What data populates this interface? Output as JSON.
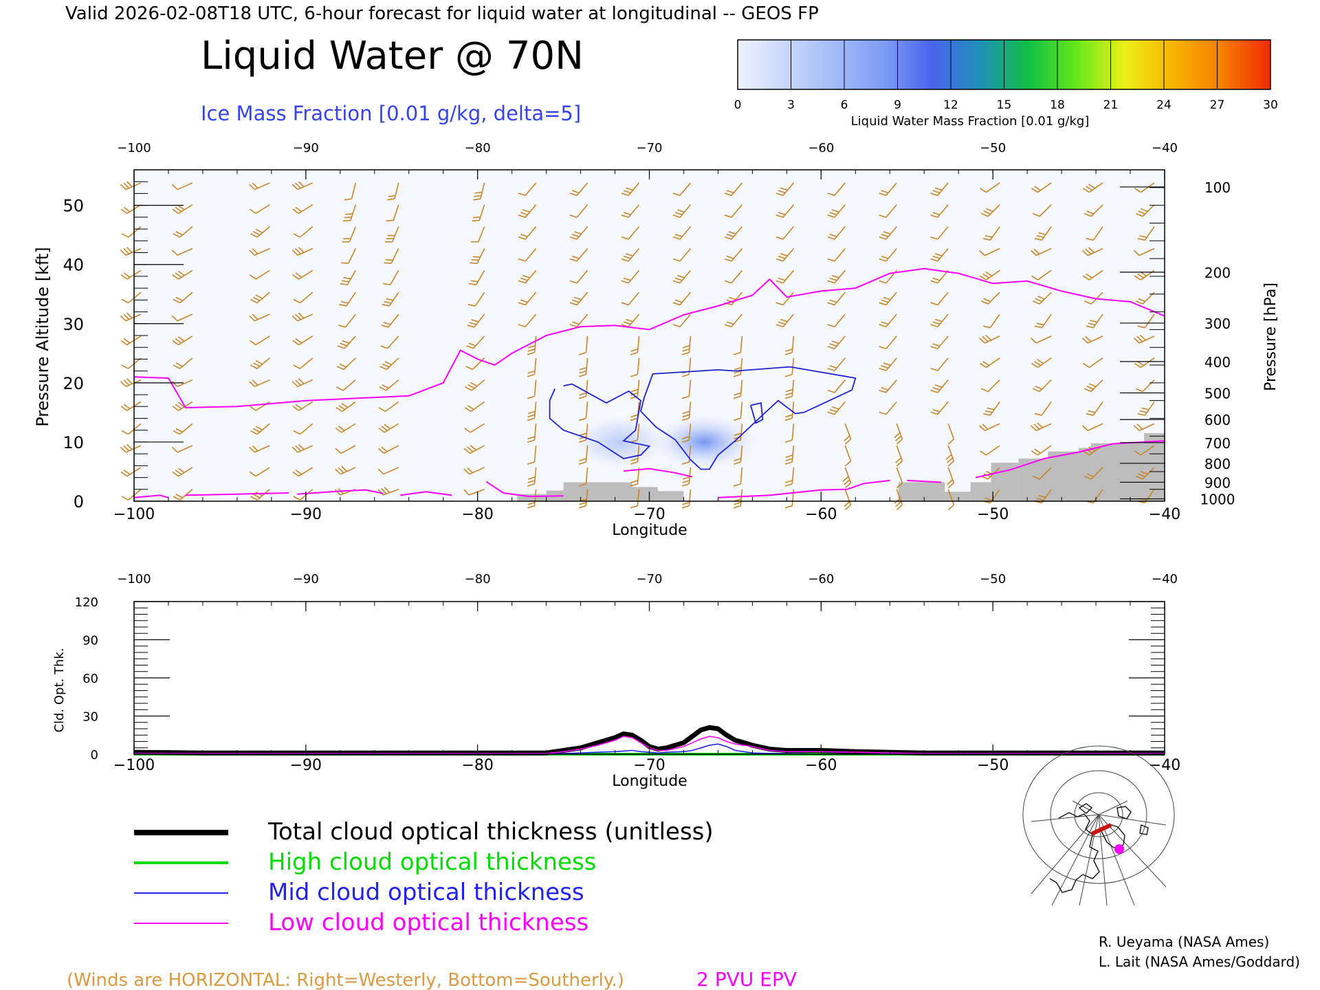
{
  "header": {
    "valid_line": "Valid 2026-02-08T18 UTC, 6-hour forecast for liquid water at longitudinal -- GEOS FP",
    "title": "Liquid Water @ 70N",
    "subtitle": "Ice Mass Fraction [0.01 g/kg, delta=5]"
  },
  "colorbar": {
    "ticks": [
      "0",
      "3",
      "6",
      "9",
      "12",
      "15",
      "18",
      "21",
      "24",
      "27",
      "30"
    ],
    "label": "Liquid Water Mass Fraction [0.01 g/kg]",
    "colors": [
      "#eef2fd",
      "#c9d8fb",
      "#a3bcf8",
      "#7f9df4",
      "#4a64ee",
      "#1f8fb8",
      "#0fbf45",
      "#66e81a",
      "#ecf01a",
      "#f7b300",
      "#f77d00",
      "#f02a00"
    ]
  },
  "colors": {
    "wind_barb": "#c8862a",
    "epv_line": "#ff00ff",
    "ice_contour": "#1f22d6",
    "terrain": "#bdbdbd",
    "total": "#000000",
    "high": "#00dd00",
    "mid": "#2222ee",
    "low": "#ff00ff"
  },
  "chart_data": [
    {
      "type": "contour",
      "xlabel": "Longitude",
      "ylabel": "Pressure Altitude [kft]",
      "ylabel_right": "Pressure [hPa]",
      "xlim": [
        -100,
        -40
      ],
      "ylim": [
        0,
        56
      ],
      "x_ticks": [
        "−100",
        "−90",
        "−80",
        "−70",
        "−60",
        "−50",
        "−40"
      ],
      "x_ticks_values": [
        -100,
        -90,
        -80,
        -70,
        -60,
        -50,
        -40
      ],
      "y_ticks": [
        "0",
        "10",
        "20",
        "30",
        "40",
        "50"
      ],
      "y_ticks_values": [
        0,
        10,
        20,
        30,
        40,
        50
      ],
      "pressure_ticks": [
        "100",
        "200",
        "300",
        "400",
        "500",
        "600",
        "700",
        "800",
        "900",
        "1000"
      ],
      "pressure_ticks_kft": [
        53.1,
        38.7,
        30.1,
        23.6,
        18.3,
        13.8,
        9.9,
        6.4,
        3.2,
        0.4
      ],
      "epv_2pvu": {
        "name": "2 PVU EPV",
        "x": [
          -100,
          -98,
          -97,
          -94,
          -90,
          -87,
          -84,
          -82,
          -81,
          -80,
          -79,
          -78,
          -76,
          -74,
          -72,
          -70,
          -68,
          -66,
          -64,
          -63,
          -62,
          -60,
          -58,
          -56,
          -54,
          -52,
          -50,
          -48,
          -46,
          -44,
          -42,
          -40
        ],
        "y": [
          21,
          20.8,
          15.8,
          16,
          17,
          17.4,
          17.8,
          20,
          25.5,
          24,
          23,
          25,
          28,
          29.5,
          29.7,
          29,
          31.5,
          33,
          34.8,
          37.5,
          34.5,
          35.5,
          36,
          38.5,
          39.3,
          38.5,
          36.8,
          37.2,
          35.5,
          34.2,
          33.7,
          31.3
        ]
      },
      "epv_surface_lines": [
        {
          "x": [
            -100,
            -98.5,
            -98
          ],
          "y": [
            0.6,
            1.0,
            0.6
          ]
        },
        {
          "x": [
            -97,
            -94,
            -91
          ],
          "y": [
            1.0,
            1.2,
            1.4
          ]
        },
        {
          "x": [
            -90.5,
            -88,
            -86.5,
            -85.5
          ],
          "y": [
            1.2,
            1.7,
            1.9,
            1.3
          ]
        },
        {
          "x": [
            -84.5,
            -83,
            -81.5
          ],
          "y": [
            1.0,
            1.6,
            1.0
          ]
        },
        {
          "x": [
            -79.5,
            -78.5,
            -77,
            -75
          ],
          "y": [
            3.3,
            1.4,
            0.8,
            0.9
          ]
        },
        {
          "x": [
            -71.5,
            -70,
            -68.5,
            -67.5
          ],
          "y": [
            5.1,
            5.5,
            4.8,
            4.1
          ]
        },
        {
          "x": [
            -66,
            -63,
            -60,
            -58.5,
            -57.5,
            -56
          ],
          "y": [
            0.6,
            1.0,
            1.9,
            2.0,
            3.0,
            3.5
          ]
        },
        {
          "x": [
            -55,
            -53
          ],
          "y": [
            3.5,
            3.2
          ]
        },
        {
          "x": [
            -51,
            -49,
            -47,
            -45,
            -43,
            -40
          ],
          "y": [
            4.0,
            5.3,
            7.2,
            8.3,
            9.7,
            10.2
          ]
        }
      ],
      "ice_contours": [
        {
          "x": [
            -75,
            -74.5,
            -73.5,
            -72.5,
            -71.2,
            -70.5,
            -70.8,
            -71.5,
            -70,
            -70.5,
            -71.5,
            -73,
            -75,
            -75.8,
            -75.8,
            -75.5
          ],
          "y": [
            19.5,
            19.8,
            18.2,
            16.6,
            18.6,
            17,
            12,
            10.2,
            9.3,
            7.8,
            7.2,
            10,
            12,
            14,
            17,
            19
          ]
        },
        {
          "x": [
            -70.3,
            -69.8,
            -66,
            -65,
            -61.8,
            -58,
            -58.2,
            -61,
            -61.5,
            -62.5,
            -63.5,
            -65,
            -66,
            -66.5,
            -67,
            -67.6,
            -68.5,
            -69.6,
            -70.5,
            -70.3
          ],
          "y": [
            17.5,
            21.5,
            22.2,
            22,
            22.7,
            20.8,
            18.8,
            15,
            14.8,
            17,
            14.3,
            10.2,
            7.8,
            5.4,
            5.4,
            7,
            10.4,
            12.5,
            15.2,
            17.5
          ]
        },
        {
          "x": [
            -64.1,
            -63.5,
            -63.4,
            -63.8,
            -64.1
          ],
          "y": [
            16.2,
            16.6,
            13.8,
            13.2,
            16.2
          ]
        }
      ],
      "liquid_patches": [
        {
          "lon": -66.8,
          "kft": 10,
          "value": 9
        },
        {
          "lon": -71.7,
          "kft": 10,
          "value": 4
        }
      ],
      "terrain": [
        {
          "x0": -77.7,
          "x1": -76,
          "y": 1.2
        },
        {
          "x0": -76,
          "x1": -75,
          "y": 1.8
        },
        {
          "x0": -75,
          "x1": -71,
          "y": 3.2
        },
        {
          "x0": -71,
          "x1": -69.5,
          "y": 2.4
        },
        {
          "x0": -69.5,
          "x1": -68,
          "y": 1.7
        },
        {
          "x0": -55.5,
          "x1": -52.8,
          "y": 3.2
        },
        {
          "x0": -52.8,
          "x1": -51.3,
          "y": 1.6
        },
        {
          "x0": -51.3,
          "x1": -50.1,
          "y": 3.2
        },
        {
          "x0": -50.1,
          "x1": -48.5,
          "y": 6.5
        },
        {
          "x0": -48.5,
          "x1": -46.8,
          "y": 7.2
        },
        {
          "x0": -46.8,
          "x1": -45,
          "y": 8.4
        },
        {
          "x0": -45,
          "x1": -44.3,
          "y": 9.0
        },
        {
          "x0": -44.3,
          "x1": -41.2,
          "y": 9.8
        },
        {
          "x0": -41.2,
          "x1": -40,
          "y": 11.5
        }
      ],
      "winds": {
        "note": "(Winds are HORIZONTAL: Right=Westerly, Bottom=Southerly.)"
      }
    },
    {
      "type": "line",
      "xlabel": "Longitude",
      "ylabel": "Cld. Opt. Thk.",
      "xlim": [
        -100,
        -40
      ],
      "ylim": [
        0,
        120
      ],
      "x_ticks": [
        "−100",
        "−90",
        "−80",
        "−70",
        "−60",
        "−50",
        "−40"
      ],
      "x_ticks_values": [
        -100,
        -90,
        -80,
        -70,
        -60,
        -50,
        -40
      ],
      "y_ticks": [
        "0",
        "30",
        "60",
        "90",
        "120"
      ],
      "y_ticks_values": [
        0,
        30,
        60,
        90,
        120
      ],
      "x": [
        -100,
        -96,
        -92,
        -88,
        -84,
        -80,
        -78,
        -76,
        -75,
        -74,
        -73,
        -72,
        -71.5,
        -71,
        -70.5,
        -70,
        -69.5,
        -69,
        -68,
        -67.5,
        -67,
        -66.5,
        -66,
        -65.5,
        -65,
        -64.5,
        -64,
        -63,
        -62,
        -60,
        -58,
        -56,
        -54,
        -50,
        -45,
        -40
      ],
      "series": [
        {
          "name": "Total cloud optical thickness (unitless)",
          "values": [
            1.5,
            1,
            1,
            1,
            1,
            1,
            1,
            1,
            3,
            5,
            9,
            13,
            16,
            15,
            11,
            6,
            4,
            5,
            9,
            14,
            19,
            21,
            20,
            15,
            11,
            9,
            7,
            4,
            3,
            3,
            2,
            1.5,
            1,
            1,
            1,
            1
          ]
        },
        {
          "name": "High cloud optical thickness",
          "values": [
            0,
            0,
            0,
            0,
            0,
            0,
            0,
            0,
            0,
            0,
            0,
            0,
            0,
            0,
            0,
            0,
            0,
            0,
            0,
            0,
            0,
            0,
            0,
            0,
            0,
            0,
            0,
            0,
            0,
            0,
            0,
            0,
            0,
            0,
            0,
            0
          ]
        },
        {
          "name": "Mid cloud optical thickness",
          "values": [
            0,
            0,
            0,
            0,
            0,
            0,
            0,
            0,
            0.5,
            1,
            1.5,
            2,
            2.5,
            3,
            2,
            1.5,
            1,
            1.5,
            2,
            3,
            5,
            7,
            8,
            6,
            3,
            2,
            1,
            0.5,
            0.5,
            0,
            0,
            0,
            0,
            0,
            0,
            0
          ]
        },
        {
          "name": "Low cloud optical thickness",
          "values": [
            0.5,
            0.5,
            0.5,
            0.5,
            0.5,
            0.5,
            0.5,
            0.5,
            2,
            4,
            7,
            11,
            14,
            13,
            9,
            5,
            3,
            3,
            6,
            9,
            12,
            14,
            13,
            10,
            8,
            7,
            6,
            3,
            2,
            2,
            1.5,
            1,
            0.5,
            0.5,
            0.5,
            0.5
          ]
        }
      ]
    }
  ],
  "legend": {
    "items": [
      {
        "label": "Total cloud optical thickness (unitless)",
        "color": "#000000"
      },
      {
        "label": "High cloud optical thickness",
        "color": "#00dd00"
      },
      {
        "label": "Mid cloud optical thickness",
        "color": "#2222ee"
      },
      {
        "label": "Low cloud optical thickness",
        "color": "#ff00ff"
      }
    ]
  },
  "footer": {
    "winds_note": "(Winds are HORIZONTAL: Right=Westerly, Bottom=Southerly.)",
    "epv_label": "2 PVU EPV",
    "credit_1": "R. Ueyama (NASA Ames)",
    "credit_2": "L. Lait (NASA Ames/Goddard)"
  }
}
